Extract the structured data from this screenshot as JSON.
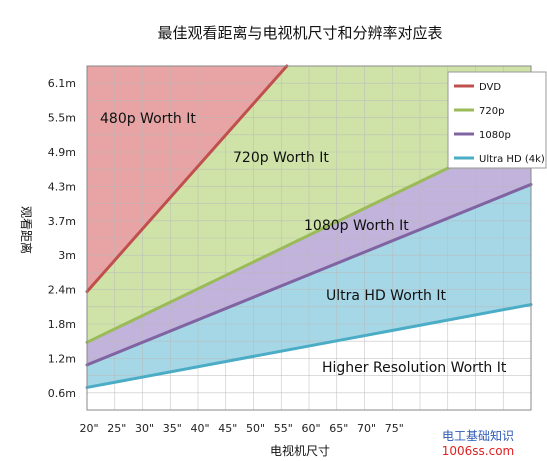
{
  "chart_data": {
    "type": "line",
    "title": "最佳观看距离与电视机尺寸和分辨率对应表",
    "xlabel": "电视机尺寸",
    "ylabel": "观看距离",
    "x_ticks": [
      "20\"",
      "25\"",
      "30\"",
      "35\"",
      "40\"",
      "45\"",
      "50\"",
      "55\"",
      "60\"",
      "65\"",
      "70\"",
      "75\""
    ],
    "y_ticks": [
      "0.6m",
      "1.2m",
      "1.8m",
      "2.4m",
      "3m",
      "3.7m",
      "4.3m",
      "4.9m",
      "5.5m",
      "6.1m"
    ],
    "xlim": [
      20,
      100
    ],
    "ylim": [
      0,
      6.1
    ],
    "grid": true,
    "legend_position": "top-right",
    "series": [
      {
        "name": "DVD",
        "color": "#c0504d",
        "x": [
          20,
          56
        ],
        "y": [
          2.1,
          6.1
        ]
      },
      {
        "name": "720p",
        "color": "#9bbb59",
        "x": [
          20,
          100
        ],
        "y": [
          1.2,
          5.0
        ]
      },
      {
        "name": "1080p",
        "color": "#8064a2",
        "x": [
          20,
          100
        ],
        "y": [
          0.8,
          4.0
        ]
      },
      {
        "name": "Ultra HD (4k)",
        "color": "#4bacc6",
        "x": [
          20,
          100
        ],
        "y": [
          0.4,
          1.87
        ]
      }
    ],
    "regions": [
      {
        "label": "480p Worth It",
        "fill": "#e8a4a4"
      },
      {
        "label": "720p Worth It",
        "fill": "#cfe3a8"
      },
      {
        "label": "1080p Worth It",
        "fill": "#c1b3dc"
      },
      {
        "label": "Ultra HD Worth It",
        "fill": "#a6d7e6"
      },
      {
        "label": "Higher Resolution Worth It",
        "fill": "#ffffff"
      }
    ]
  },
  "watermark": {
    "line1": "电工基础知识",
    "line2": "1006ss.com"
  }
}
